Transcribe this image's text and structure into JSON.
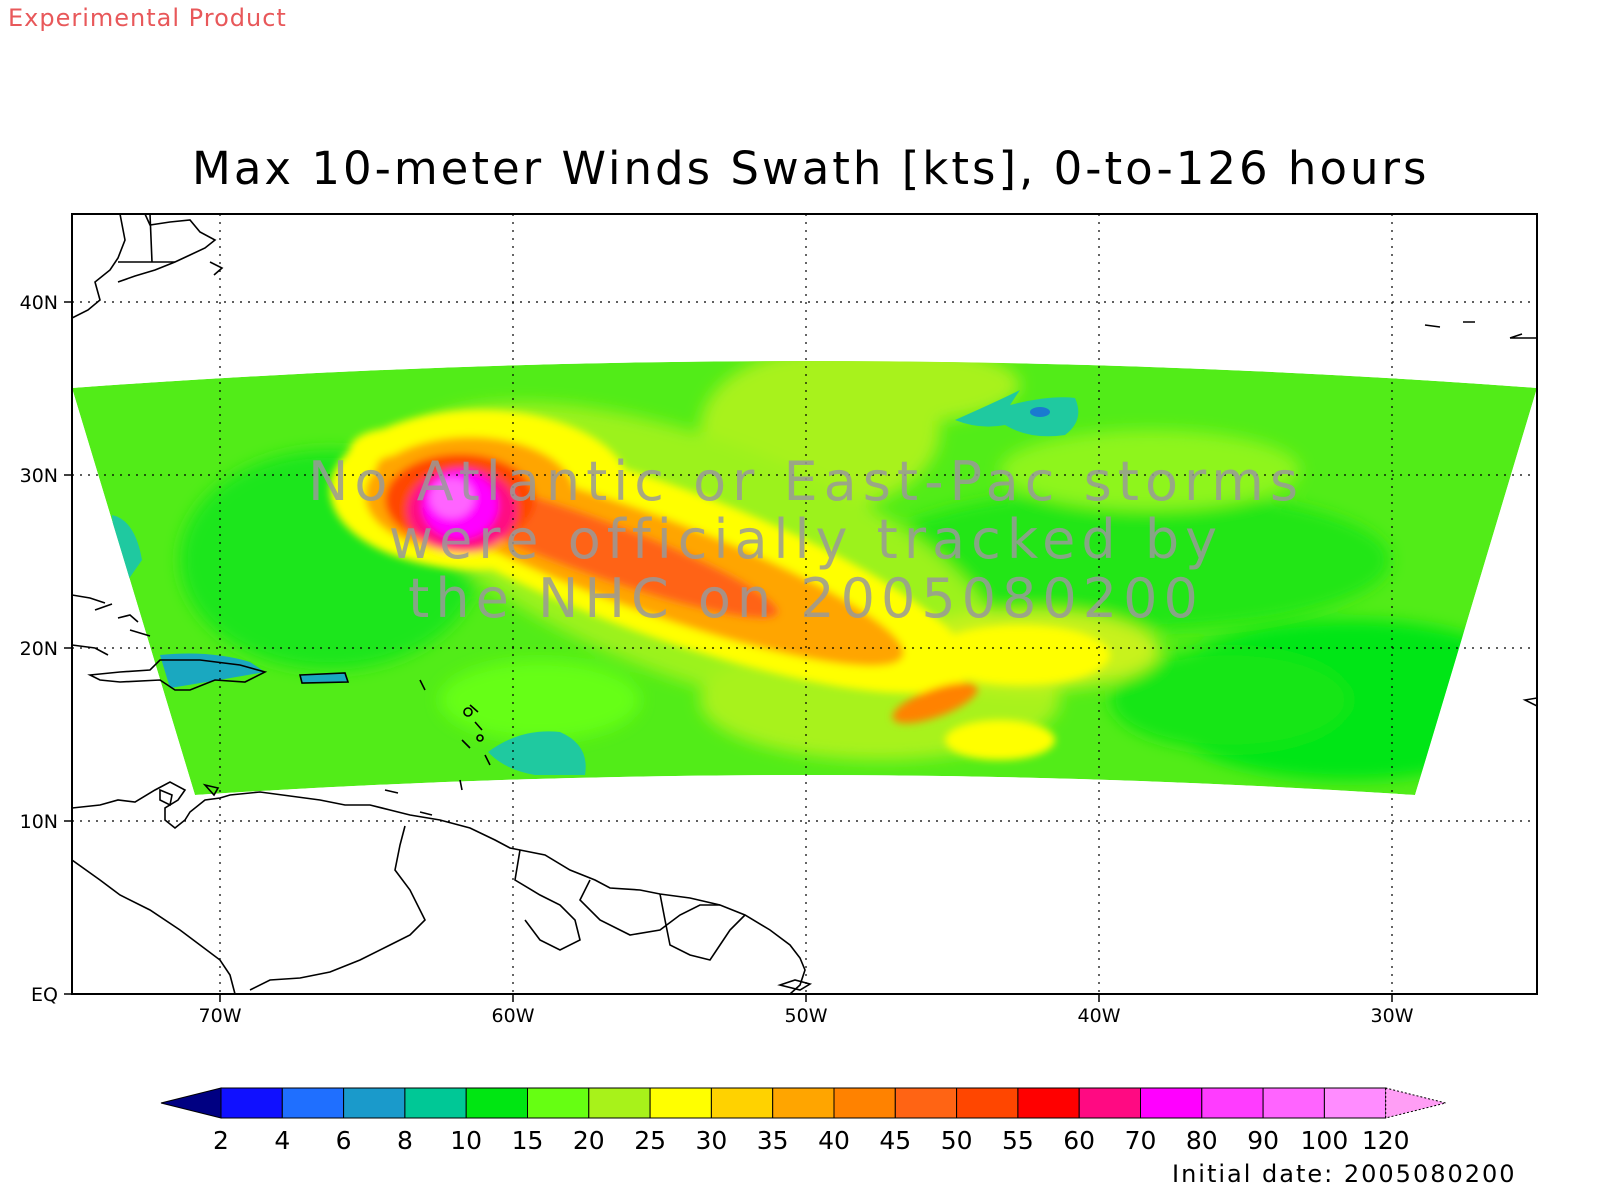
{
  "header": {
    "experimental_label": "Experimental Product",
    "title": "Max 10-meter Winds Swath [kts], 0-to-126 hours"
  },
  "map": {
    "lat_labels": [
      "40N",
      "30N",
      "20N",
      "10N",
      "EQ"
    ],
    "lon_labels": [
      "70W",
      "60W",
      "50W",
      "40W",
      "30W"
    ],
    "notice_lines": [
      "No Atlantic or East-Pac storms",
      "were officially tracked by",
      "the NHC on 2005080200"
    ]
  },
  "colorbar": {
    "labels": [
      "2",
      "4",
      "6",
      "8",
      "10",
      "15",
      "20",
      "25",
      "30",
      "35",
      "40",
      "45",
      "50",
      "55",
      "60",
      "70",
      "80",
      "90",
      "100",
      "120"
    ],
    "colors": [
      "#1010ff",
      "#1f6fff",
      "#1a9acb",
      "#00c896",
      "#00e612",
      "#66ff12",
      "#a8f21a",
      "#ffff00",
      "#ffd200",
      "#ffa500",
      "#ff8200",
      "#ff6414",
      "#ff4600",
      "#ff0000",
      "#ff0a82",
      "#ff00ff",
      "#ff3cff",
      "#ff64ff",
      "#ff8cff"
    ],
    "low_color": "#000082",
    "high_color": "#ff9ef5"
  },
  "footer": {
    "initial_date": "Initial date: 2005080200"
  }
}
